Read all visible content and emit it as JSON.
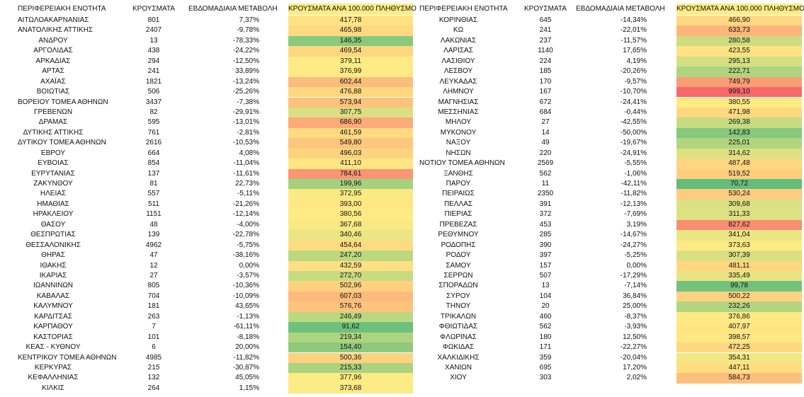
{
  "tables": [
    {
      "header": [
        "ΠΕΡΙΦΕΡΕΙΑΚΗ ΕΝΟΤΗΤΑ",
        "ΚΡΟΥΣΜΑΤΑ",
        "ΕΒΔΟΜΑΔΙΑΙΑ ΜΕΤΑΒΟΛΗ",
        "ΚΡΟΥΣΜΑΤΑ ΑΝΑ 100.000 ΠΛΗΘΥΣΜΟ"
      ],
      "rows": [
        [
          "ΑΙΤΩΛΟΑΚΑΡΝΑΝΙΑΣ",
          "801",
          "7,37%",
          "417,78"
        ],
        [
          "ΑΝΑΤΟΛΙΚΗΣ ΑΤΤΙΚΗΣ",
          "2407",
          "-9,78%",
          "465,98"
        ],
        [
          "ΑΝΔΡΟΥ",
          "13",
          "-78,33%",
          "146,35"
        ],
        [
          "ΑΡΓΟΛΙΔΑΣ",
          "438",
          "-24,22%",
          "469,54"
        ],
        [
          "ΑΡΚΑΔΙΑΣ",
          "294",
          "-12,50%",
          "379,11"
        ],
        [
          "ΑΡΤΑΣ",
          "241",
          "33,89%",
          "376,99"
        ],
        [
          "ΑΧΑΪΑΣ",
          "1821",
          "-13,24%",
          "602,44"
        ],
        [
          "ΒΟΙΩΤΙΑΣ",
          "506",
          "-25,26%",
          "476,88"
        ],
        [
          "ΒΟΡΕΙΟΥ ΤΟΜΕΑ ΑΘΗΝΩΝ",
          "3437",
          "-7,38%",
          "573,94"
        ],
        [
          "ΓΡΕΒΕΝΩΝ",
          "82",
          "-29,91%",
          "307,75"
        ],
        [
          "ΔΡΑΜΑΣ",
          "595",
          "-13,01%",
          "686,90"
        ],
        [
          "ΔΥΤΙΚΗΣ ΑΤΤΙΚΗΣ",
          "761",
          "-2,81%",
          "461,59"
        ],
        [
          "ΔΥΤΙΚΟΥ ΤΟΜΕΑ ΑΘΗΝΩΝ",
          "2616",
          "-10,53%",
          "549,80"
        ],
        [
          "ΕΒΡΟΥ",
          "664",
          "4,08%",
          "496,03"
        ],
        [
          "ΕΥΒΟΙΑΣ",
          "854",
          "-11,04%",
          "411,10"
        ],
        [
          "ΕΥΡΥΤΑΝΙΑΣ",
          "137",
          "-11,61%",
          "784,61"
        ],
        [
          "ΖΑΚΥΝΘΟΥ",
          "81",
          "22,73%",
          "199,96"
        ],
        [
          "ΗΛΕΙΑΣ",
          "557",
          "-5,11%",
          "372,95"
        ],
        [
          "ΗΜΑΘΙΑΣ",
          "511",
          "-21,26%",
          "393,00"
        ],
        [
          "ΗΡΑΚΛΕΙΟΥ",
          "1151",
          "-12,14%",
          "380,56"
        ],
        [
          "ΘΑΣΟΥ",
          "48",
          "-4,00%",
          "367,68"
        ],
        [
          "ΘΕΣΠΡΩΤΙΑΣ",
          "139",
          "-22,78%",
          "340,46"
        ],
        [
          "ΘΕΣΣΑΛΟΝΙΚΗΣ",
          "4962",
          "-5,75%",
          "454,64"
        ],
        [
          "ΘΗΡΑΣ",
          "47",
          "-38,16%",
          "247,20"
        ],
        [
          "ΙΘΑΚΗΣ",
          "12",
          "0,00%",
          "432,59"
        ],
        [
          "ΙΚΑΡΙΑΣ",
          "27",
          "-3,57%",
          "272,70"
        ],
        [
          "ΙΩΑΝΝΙΝΩΝ",
          "805",
          "-10,36%",
          "502,96"
        ],
        [
          "ΚΑΒΑΛΑΣ",
          "704",
          "-10,09%",
          "607,03"
        ],
        [
          "ΚΑΛΥΜΝΟΥ",
          "181",
          "43,65%",
          "576,76"
        ],
        [
          "ΚΑΡΔΙΤΣΑΣ",
          "263",
          "-1,13%",
          "246,49"
        ],
        [
          "ΚΑΡΠΑΘΟΥ",
          "7",
          "-61,11%",
          "91,62"
        ],
        [
          "ΚΑΣΤΟΡΙΑΣ",
          "101",
          "-8,18%",
          "219,34"
        ],
        [
          "ΚΕΑΣ - ΚΥΘΝΟΥ",
          "6",
          "20,00%",
          "154,40"
        ],
        [
          "ΚΕΝΤΡΙΚΟΥ ΤΟΜΕΑ ΑΘΗΝΩΝ",
          "4985",
          "-11,82%",
          "500,36"
        ],
        [
          "ΚΕΡΚΥΡΑΣ",
          "215",
          "-30,87%",
          "215,33"
        ],
        [
          "ΚΕΦΑΛΛΗΝΙΑΣ",
          "132",
          "45,05%",
          "377,96"
        ],
        [
          "ΚΙΛΚΙΣ",
          "264",
          "1,15%",
          "373,68"
        ]
      ]
    },
    {
      "header": [
        "ΠΕΡΙΦΕΡΕΙΑΚΗ ΕΝΟΤΗΤΑ",
        "ΚΡΟΥΣΜΑΤΑ",
        "ΕΒΔΟΜΑΔΙΑΙΑ ΜΕΤΑΒΟΛΗ",
        "ΚΡΟΥΣΜΑΤΑ ΑΝΑ 100.000 ΠΛΗΘΥΣΜΟ"
      ],
      "rows": [
        [
          "ΚΟΡΙΝΘΙΑΣ",
          "645",
          "-14,34%",
          "466,90"
        ],
        [
          "ΚΩ",
          "241",
          "-22,01%",
          "633,73"
        ],
        [
          "ΛΑΚΩΝΙΑΣ",
          "237",
          "-11,57%",
          "280,58"
        ],
        [
          "ΛΑΡΙΣΑΣ",
          "1140",
          "17,65%",
          "423,55"
        ],
        [
          "ΛΑΣΙΘΙΟΥ",
          "224",
          "4,19%",
          "295,13"
        ],
        [
          "ΛΕΣΒΟΥ",
          "185",
          "-20,26%",
          "222,71"
        ],
        [
          "ΛΕΥΚΑΔΑΣ",
          "170",
          "-9,57%",
          "749,79"
        ],
        [
          "ΛΗΜΝΟΥ",
          "167",
          "-10,70%",
          "999,10"
        ],
        [
          "ΜΑΓΝΗΣΙΑΣ",
          "672",
          "-24,41%",
          "380,55"
        ],
        [
          "ΜΕΣΣΗΝΙΑΣ",
          "684",
          "-0,44%",
          "471,98"
        ],
        [
          "ΜΗΛΟΥ",
          "27",
          "-42,55%",
          "269,38"
        ],
        [
          "ΜΥΚΟΝΟΥ",
          "14",
          "-50,00%",
          "142,83"
        ],
        [
          "ΝΑΞΟΥ",
          "49",
          "-19,67%",
          "225,01"
        ],
        [
          "ΝΗΣΩΝ",
          "220",
          "-24,91%",
          "314,62"
        ],
        [
          "ΝΟΤΙΟΥ ΤΟΜΕΑ ΑΘΗΝΩΝ",
          "2569",
          "-5,55%",
          "487,48"
        ],
        [
          "ΞΑΝΘΗΣ",
          "562",
          "-1,06%",
          "519,52"
        ],
        [
          "ΠΑΡΟΥ",
          "11",
          "-42,11%",
          "70,72"
        ],
        [
          "ΠΕΙΡΑΙΩΣ",
          "2350",
          "-11,82%",
          "530,24"
        ],
        [
          "ΠΕΛΛΑΣ",
          "391",
          "-12,13%",
          "309,68"
        ],
        [
          "ΠΙΕΡΙΑΣ",
          "372",
          "-7,69%",
          "311,33"
        ],
        [
          "ΠΡΕΒΕΖΑΣ",
          "453",
          "3,19%",
          "827,62"
        ],
        [
          "ΡΕΘΥΜΝΟΥ",
          "285",
          "-14,67%",
          "341,04"
        ],
        [
          "ΡΟΔΟΠΗΣ",
          "390",
          "-24,27%",
          "373,63"
        ],
        [
          "ΡΟΔΟΥ",
          "397",
          "-5,25%",
          "307,39"
        ],
        [
          "ΣΑΜΟΥ",
          "157",
          "0,00%",
          "481,11"
        ],
        [
          "ΣΕΡΡΩΝ",
          "507",
          "-17,29%",
          "335,49"
        ],
        [
          "ΣΠΟΡΑΔΩΝ",
          "13",
          "-7,14%",
          "99,78"
        ],
        [
          "ΣΥΡΟΥ",
          "104",
          "36,84%",
          "500,22"
        ],
        [
          "ΤΗΝΟΥ",
          "20",
          "25,00%",
          "232,26"
        ],
        [
          "ΤΡΙΚΑΛΩΝ",
          "460",
          "-8,37%",
          "376,86"
        ],
        [
          "ΦΘΙΩΤΙΔΑΣ",
          "562",
          "-3,93%",
          "407,97"
        ],
        [
          "ΦΛΩΡΙΝΑΣ",
          "180",
          "12,50%",
          "398,57"
        ],
        [
          "ΦΩΚΙΔΑΣ",
          "171",
          "-22,27%",
          "472,25"
        ],
        [
          "ΧΑΛΚΙΔΙΚΗΣ",
          "359",
          "-20,04%",
          "354,31"
        ],
        [
          "ΧΑΝΙΩΝ",
          "695",
          "17,20%",
          "447,11"
        ],
        [
          "ΧΙΟΥ",
          "303",
          "2,02%",
          "584,73"
        ]
      ]
    }
  ]
}
